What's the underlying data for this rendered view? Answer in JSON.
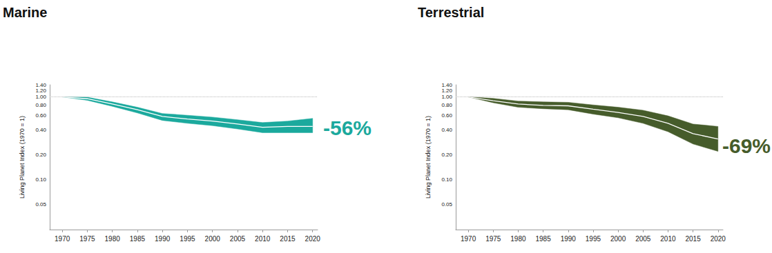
{
  "chart_data": [
    {
      "type": "line",
      "title": "Marine",
      "y_label": "Living Planet Index (1970 = 1)",
      "annotation": "-56%",
      "x": [
        1970,
        1975,
        1980,
        1985,
        1990,
        1995,
        2000,
        2005,
        2010,
        2015,
        2020
      ],
      "values": [
        1.0,
        0.95,
        0.82,
        0.7,
        0.58,
        0.54,
        0.51,
        0.47,
        0.43,
        0.44,
        0.44
      ],
      "lower": [
        1.0,
        0.91,
        0.77,
        0.64,
        0.52,
        0.48,
        0.45,
        0.41,
        0.37,
        0.37,
        0.37
      ],
      "upper": [
        1.0,
        0.99,
        0.87,
        0.75,
        0.63,
        0.6,
        0.57,
        0.53,
        0.49,
        0.51,
        0.55
      ],
      "color": "#1ba99d",
      "reference_line": 1,
      "xlim": [
        1967.5,
        2021
      ],
      "xticks": [
        1970,
        1975,
        1980,
        1985,
        1990,
        1995,
        2000,
        2005,
        2010,
        2015,
        2020
      ],
      "ylim": [
        0.025,
        1.4
      ],
      "yticks": [
        0.05,
        {
          "value": 0.1,
          "label": "0.10"
        },
        {
          "value": 0.2,
          "label": "0.20"
        },
        {
          "value": 0.4,
          "label": "0.40"
        },
        {
          "value": 0.6,
          "label": "0.60"
        },
        {
          "value": 0.8,
          "label": "0.80"
        },
        {
          "value": 1,
          "label": "1.00"
        },
        {
          "value": 1.2,
          "label": "1.20"
        },
        {
          "value": 1.4,
          "label": "1.40"
        }
      ],
      "log": "y",
      "grid": false
    },
    {
      "type": "line",
      "title": "Terrestrial",
      "y_label": "Living Planet Index (1970 = 1)",
      "annotation": "-69%",
      "x": [
        1970,
        1975,
        1980,
        1985,
        1990,
        1995,
        2000,
        2005,
        2010,
        2015,
        2020
      ],
      "values": [
        1.0,
        0.9,
        0.82,
        0.79,
        0.78,
        0.71,
        0.65,
        0.58,
        0.48,
        0.36,
        0.31
      ],
      "lower": [
        1.0,
        0.85,
        0.75,
        0.72,
        0.7,
        0.62,
        0.56,
        0.48,
        0.38,
        0.27,
        0.22
      ],
      "upper": [
        1.0,
        0.96,
        0.89,
        0.87,
        0.86,
        0.8,
        0.75,
        0.69,
        0.59,
        0.47,
        0.44
      ],
      "color": "#465c2b",
      "reference_line": 1,
      "xlim": [
        1967.5,
        2021
      ],
      "xticks": [
        1970,
        1975,
        1980,
        1985,
        1990,
        1995,
        2000,
        2005,
        2010,
        2015,
        2020
      ],
      "ylim": [
        0.025,
        1.4
      ],
      "yticks": [
        0.05,
        {
          "value": 0.1,
          "label": "0.10"
        },
        {
          "value": 0.2,
          "label": "0.20"
        },
        {
          "value": 0.4,
          "label": "0.40"
        },
        {
          "value": 0.6,
          "label": "0.60"
        },
        {
          "value": 0.8,
          "label": "0.80"
        },
        {
          "value": 1,
          "label": "1.00"
        },
        {
          "value": 1.2,
          "label": "1.20"
        },
        {
          "value": 1.4,
          "label": "1.40"
        }
      ],
      "log": "y",
      "grid": false
    }
  ]
}
